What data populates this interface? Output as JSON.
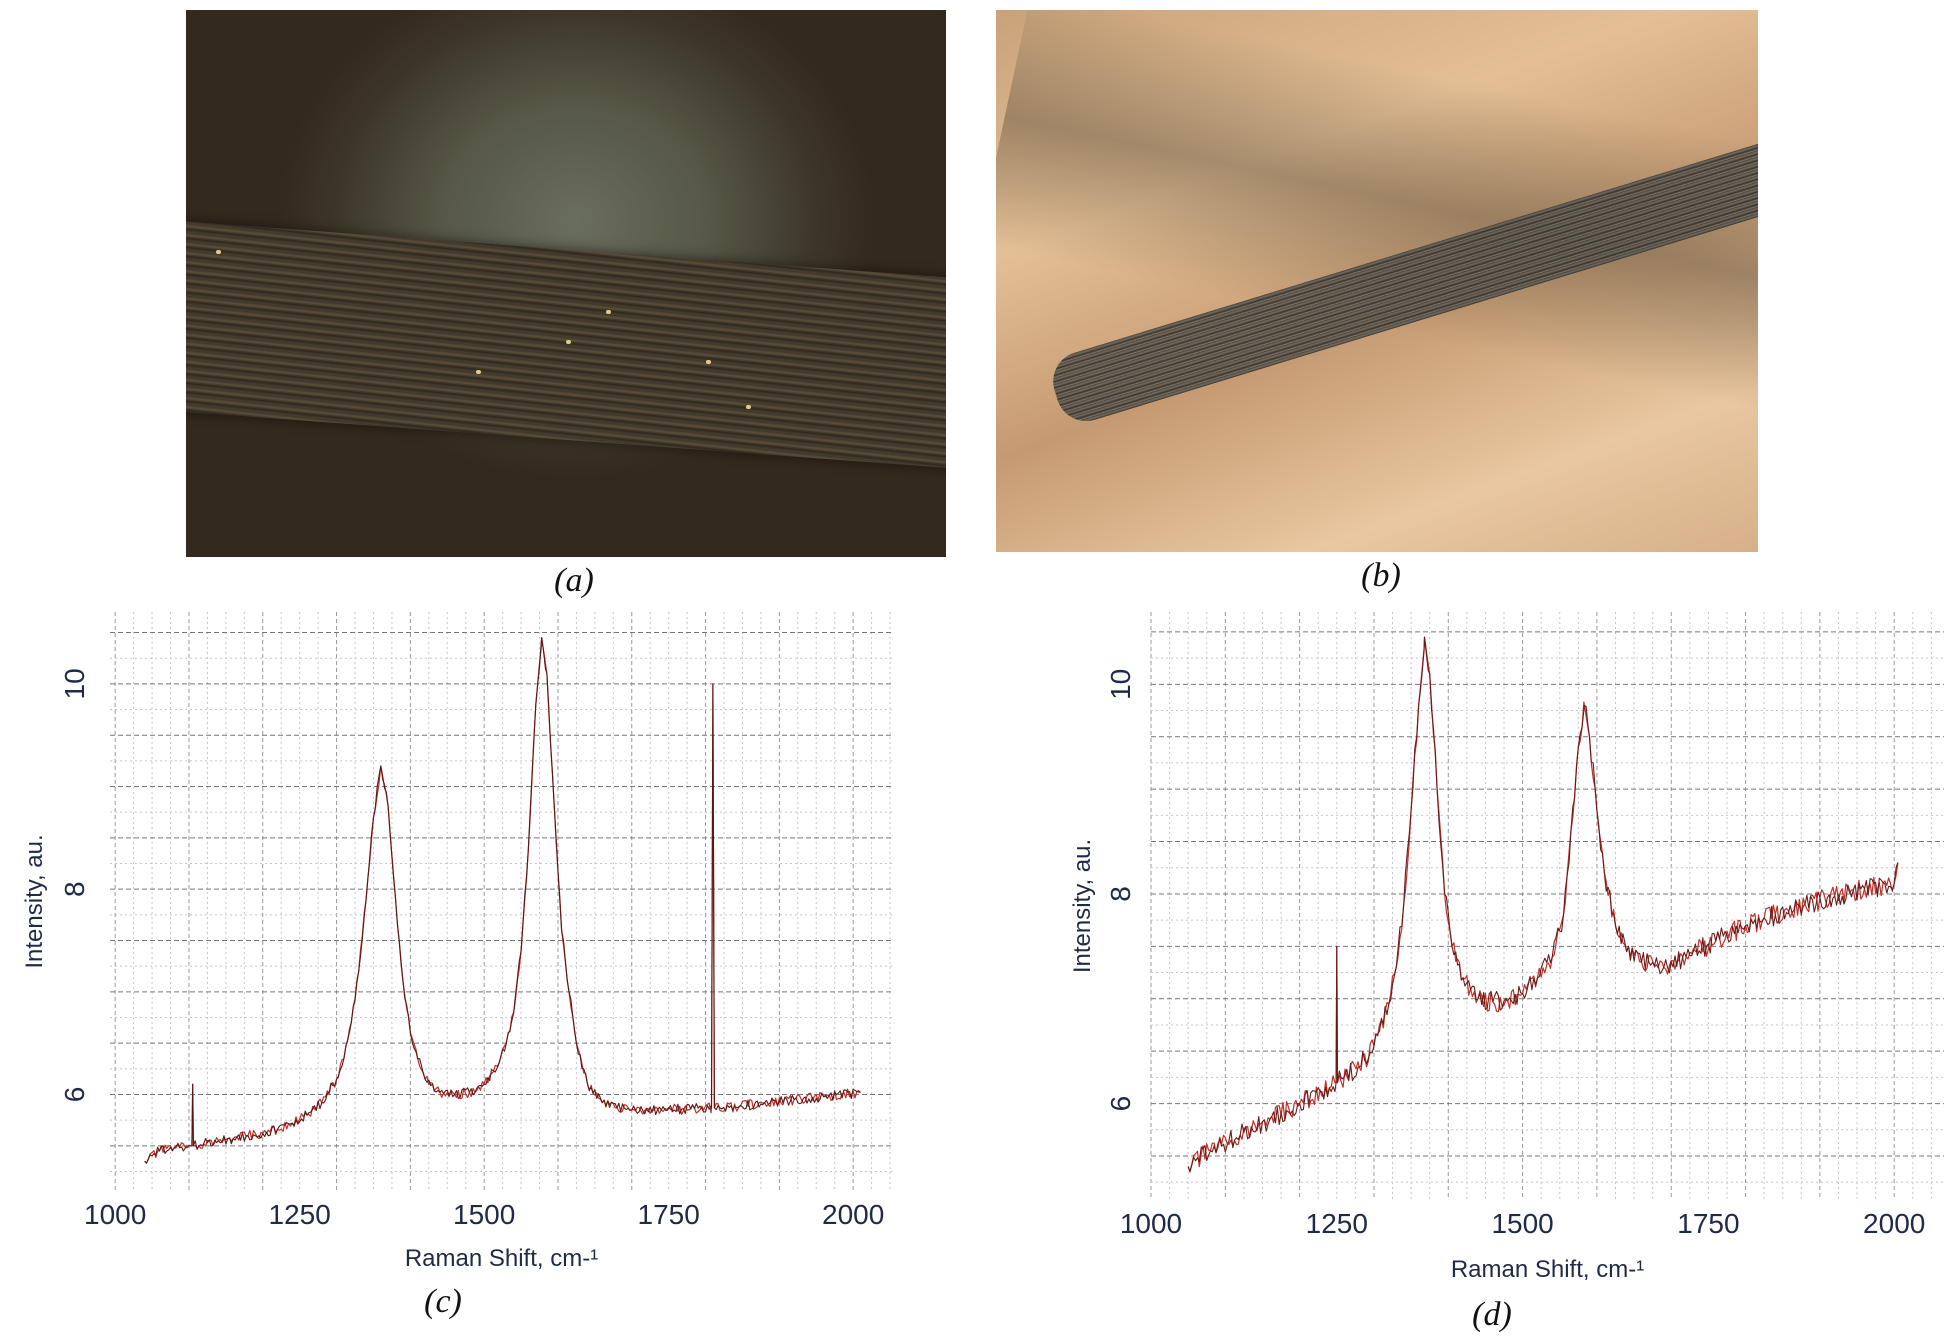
{
  "figure": {
    "captions": [
      "(a)",
      "(b)",
      "(c)",
      "(d)"
    ]
  },
  "chart_data": [
    {
      "type": "line",
      "panel": "(c)",
      "xlabel": "Raman Shift, cm-¹",
      "ylabel": "Intensity, au.",
      "xticks": [
        "1000",
        "1250",
        "1500",
        "1750",
        "2000"
      ],
      "xtick_values": [
        1000,
        1250,
        1500,
        1750,
        2000
      ],
      "yticks": [
        "6",
        "8",
        "10"
      ],
      "ytick_values": [
        6,
        8,
        10
      ],
      "xlim": [
        993,
        2054
      ],
      "ylim": [
        5.06,
        10.7
      ],
      "grid": true,
      "series": [
        {
          "name": "spectrum",
          "color": "#5a1814",
          "x": [
            1040,
            1060,
            1080,
            1100,
            1104,
            1105,
            1106,
            1120,
            1140,
            1160,
            1180,
            1200,
            1220,
            1240,
            1260,
            1280,
            1300,
            1310,
            1320,
            1330,
            1340,
            1350,
            1360,
            1370,
            1380,
            1390,
            1400,
            1410,
            1420,
            1440,
            1460,
            1480,
            1500,
            1520,
            1530,
            1540,
            1550,
            1560,
            1570,
            1578,
            1585,
            1595,
            1605,
            1615,
            1625,
            1640,
            1660,
            1680,
            1700,
            1740,
            1780,
            1808,
            1810,
            1812,
            1840,
            1880,
            1920,
            1960,
            2010
          ],
          "y": [
            5.35,
            5.45,
            5.48,
            5.5,
            5.5,
            6.1,
            5.5,
            5.52,
            5.55,
            5.57,
            5.6,
            5.62,
            5.66,
            5.72,
            5.8,
            5.92,
            6.15,
            6.35,
            6.7,
            7.2,
            7.9,
            8.7,
            9.2,
            8.8,
            7.9,
            7.1,
            6.6,
            6.35,
            6.15,
            6.02,
            6.0,
            6.02,
            6.1,
            6.3,
            6.5,
            6.8,
            7.4,
            8.4,
            9.8,
            10.45,
            10.1,
            8.8,
            7.6,
            7.0,
            6.5,
            6.1,
            5.92,
            5.87,
            5.85,
            5.85,
            5.86,
            5.87,
            10.0,
            5.87,
            5.88,
            5.92,
            5.95,
            5.98,
            6.02
          ]
        }
      ]
    },
    {
      "type": "line",
      "panel": "(d)",
      "xlabel": "Raman Shift, cm-¹",
      "ylabel": "Intensity, au.",
      "xticks": [
        "1000",
        "1250",
        "1500",
        "1750",
        "2000"
      ],
      "xtick_values": [
        1000,
        1250,
        1500,
        1750,
        2000
      ],
      "yticks": [
        "6",
        "8",
        "10"
      ],
      "ytick_values": [
        6,
        8,
        10
      ],
      "xlim": [
        1000,
        2067
      ],
      "ylim": [
        5.08,
        10.69
      ],
      "grid": true,
      "series": [
        {
          "name": "spectrum",
          "color": "#6a1a16",
          "x": [
            1050,
            1080,
            1120,
            1160,
            1200,
            1240,
            1249,
            1250,
            1251,
            1280,
            1300,
            1320,
            1330,
            1340,
            1350,
            1360,
            1368,
            1375,
            1385,
            1395,
            1405,
            1420,
            1440,
            1460,
            1480,
            1500,
            1520,
            1540,
            1555,
            1565,
            1575,
            1583,
            1590,
            1600,
            1610,
            1625,
            1640,
            1660,
            1690,
            1720,
            1760,
            1800,
            1840,
            1880,
            1920,
            1960,
            2000,
            2005
          ],
          "y": [
            5.4,
            5.55,
            5.7,
            5.85,
            6.0,
            6.15,
            6.2,
            7.5,
            6.2,
            6.35,
            6.55,
            6.95,
            7.3,
            7.9,
            8.8,
            9.8,
            10.45,
            10.1,
            9.0,
            8.0,
            7.5,
            7.2,
            7.0,
            6.97,
            6.98,
            7.05,
            7.2,
            7.4,
            7.8,
            8.6,
            9.4,
            9.8,
            9.5,
            8.8,
            8.2,
            7.7,
            7.45,
            7.35,
            7.3,
            7.4,
            7.55,
            7.7,
            7.8,
            7.9,
            7.98,
            8.05,
            8.1,
            8.3
          ]
        }
      ]
    }
  ]
}
